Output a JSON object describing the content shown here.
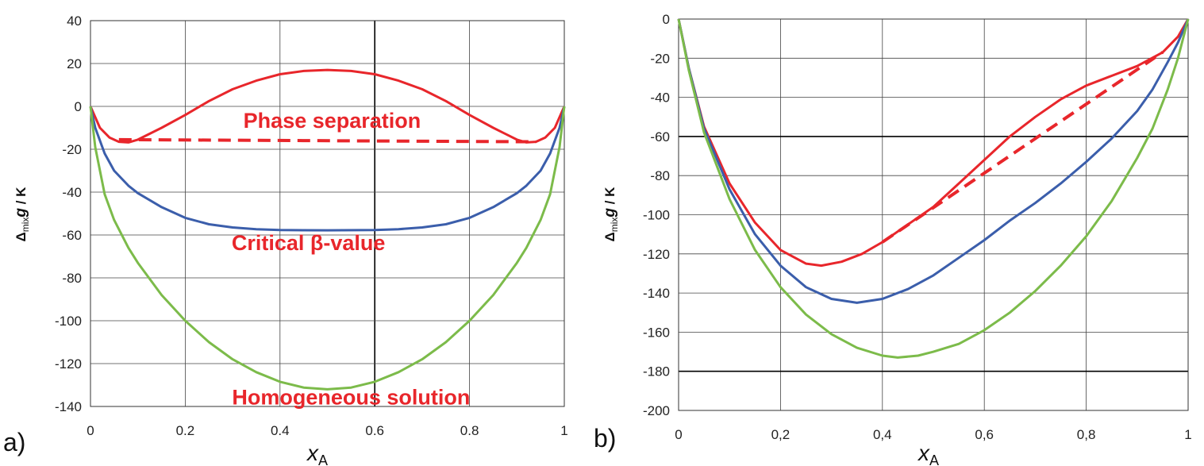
{
  "chart_data": [
    {
      "panel_label": "a)",
      "type": "line",
      "ylabel": {
        "main": "Δ",
        "sub": "mix",
        "var": "g",
        "unit": " / K"
      },
      "xlabel": {
        "main": "x",
        "sub": "A"
      },
      "xlim": [
        0,
        1
      ],
      "ylim": [
        -140,
        40
      ],
      "xticks": [
        0,
        0.2,
        0.4,
        0.6,
        0.8,
        1
      ],
      "xtick_labels": [
        "0",
        "0.2",
        "0.4",
        "0.6",
        "0.8",
        "1"
      ],
      "yticks": [
        40,
        20,
        0,
        -20,
        -40,
        -60,
        -80,
        -100,
        -120,
        -140
      ],
      "ytick_labels": [
        "40",
        "20",
        "0",
        "-20",
        "-40",
        "-60",
        "-80",
        "-100",
        "-120",
        "-140"
      ],
      "grid": true,
      "bold_gridlines_x": [
        0.6
      ],
      "bold_gridlines_y": [],
      "series": [
        {
          "name": "phase separation curve",
          "color": "#e8262b",
          "style": "solid",
          "points": [
            [
              0,
              0
            ],
            [
              0.02,
              -10
            ],
            [
              0.04,
              -14.5
            ],
            [
              0.06,
              -16.5
            ],
            [
              0.08,
              -16.8
            ],
            [
              0.1,
              -15.5
            ],
            [
              0.15,
              -10
            ],
            [
              0.2,
              -4
            ],
            [
              0.25,
              2.5
            ],
            [
              0.3,
              8
            ],
            [
              0.35,
              12
            ],
            [
              0.4,
              15
            ],
            [
              0.45,
              16.5
            ],
            [
              0.5,
              17
            ],
            [
              0.55,
              16.5
            ],
            [
              0.6,
              15
            ],
            [
              0.65,
              12
            ],
            [
              0.7,
              8
            ],
            [
              0.75,
              2.5
            ],
            [
              0.8,
              -4
            ],
            [
              0.85,
              -10
            ],
            [
              0.9,
              -15.5
            ],
            [
              0.92,
              -16.8
            ],
            [
              0.94,
              -16.5
            ],
            [
              0.96,
              -14.5
            ],
            [
              0.98,
              -10
            ],
            [
              1,
              0
            ]
          ]
        },
        {
          "name": "common tangent",
          "color": "#e8262b",
          "style": "dashed",
          "points": [
            [
              0.06,
              -15.5
            ],
            [
              0.94,
              -16.5
            ]
          ]
        },
        {
          "name": "critical beta curve",
          "color": "#3b5eab",
          "style": "solid",
          "points": [
            [
              0,
              0
            ],
            [
              0.01,
              -10
            ],
            [
              0.03,
              -22
            ],
            [
              0.05,
              -30
            ],
            [
              0.08,
              -37
            ],
            [
              0.1,
              -40.5
            ],
            [
              0.15,
              -47
            ],
            [
              0.2,
              -52
            ],
            [
              0.25,
              -55
            ],
            [
              0.3,
              -56.5
            ],
            [
              0.35,
              -57.3
            ],
            [
              0.4,
              -57.7
            ],
            [
              0.5,
              -57.8
            ],
            [
              0.6,
              -57.7
            ],
            [
              0.65,
              -57.3
            ],
            [
              0.7,
              -56.5
            ],
            [
              0.75,
              -55
            ],
            [
              0.8,
              -52
            ],
            [
              0.85,
              -47
            ],
            [
              0.9,
              -40.5
            ],
            [
              0.92,
              -37
            ],
            [
              0.95,
              -30
            ],
            [
              0.97,
              -22
            ],
            [
              0.99,
              -10
            ],
            [
              1,
              0
            ]
          ]
        },
        {
          "name": "homogeneous solution curve",
          "color": "#7cbb4a",
          "style": "solid",
          "points": [
            [
              0,
              0
            ],
            [
              0.01,
              -19
            ],
            [
              0.03,
              -41
            ],
            [
              0.05,
              -53
            ],
            [
              0.08,
              -66
            ],
            [
              0.1,
              -73
            ],
            [
              0.15,
              -88
            ],
            [
              0.2,
              -100
            ],
            [
              0.25,
              -110
            ],
            [
              0.3,
              -118
            ],
            [
              0.35,
              -124
            ],
            [
              0.4,
              -128.5
            ],
            [
              0.45,
              -131.2
            ],
            [
              0.5,
              -132
            ],
            [
              0.55,
              -131.2
            ],
            [
              0.6,
              -128.5
            ],
            [
              0.65,
              -124
            ],
            [
              0.7,
              -118
            ],
            [
              0.75,
              -110
            ],
            [
              0.8,
              -100
            ],
            [
              0.85,
              -88
            ],
            [
              0.9,
              -73
            ],
            [
              0.92,
              -66
            ],
            [
              0.95,
              -53
            ],
            [
              0.97,
              -41
            ],
            [
              0.99,
              -19
            ],
            [
              1,
              0
            ]
          ]
        }
      ],
      "annotations": [
        {
          "key": "phase",
          "text": "Phase separation",
          "at": [
            0.51,
            -10
          ]
        },
        {
          "key": "critical",
          "text": "Critical β-value",
          "at": [
            0.46,
            -67
          ]
        },
        {
          "key": "homog",
          "text": "Homogeneous solution",
          "at": [
            0.55,
            -139
          ]
        }
      ]
    },
    {
      "panel_label": "b)",
      "type": "line",
      "ylabel": {
        "main": "Δ",
        "sub": "mix",
        "var": "g",
        "unit": " / K"
      },
      "xlabel": {
        "main": "x",
        "sub": "A"
      },
      "xlim": [
        0,
        1
      ],
      "ylim": [
        -200,
        0
      ],
      "xticks": [
        0,
        0.2,
        0.4,
        0.6,
        0.8,
        1
      ],
      "xtick_labels": [
        "0",
        "0,2",
        "0,4",
        "0,6",
        "0,8",
        "1"
      ],
      "yticks": [
        0,
        -20,
        -40,
        -60,
        -80,
        -100,
        -120,
        -140,
        -160,
        -180,
        -200
      ],
      "ytick_labels": [
        "0",
        "-20",
        "-40",
        "-60",
        "-80",
        "-100",
        "-120",
        "-140",
        "-160",
        "-180",
        "-200"
      ],
      "grid": true,
      "bold_gridlines_x": [],
      "bold_gridlines_y": [
        -60,
        -180
      ],
      "series": [
        {
          "name": "phase separation curve",
          "color": "#e8262b",
          "style": "solid",
          "points": [
            [
              0,
              0
            ],
            [
              0.02,
              -25
            ],
            [
              0.05,
              -55
            ],
            [
              0.1,
              -84
            ],
            [
              0.15,
              -104
            ],
            [
              0.2,
              -118
            ],
            [
              0.25,
              -125
            ],
            [
              0.28,
              -126
            ],
            [
              0.32,
              -124
            ],
            [
              0.36,
              -120
            ],
            [
              0.4,
              -114
            ],
            [
              0.45,
              -105
            ],
            [
              0.5,
              -96
            ],
            [
              0.55,
              -84
            ],
            [
              0.6,
              -72
            ],
            [
              0.65,
              -60
            ],
            [
              0.7,
              -50
            ],
            [
              0.75,
              -41
            ],
            [
              0.8,
              -34
            ],
            [
              0.85,
              -29
            ],
            [
              0.9,
              -24
            ],
            [
              0.95,
              -17
            ],
            [
              0.98,
              -9
            ],
            [
              1,
              0
            ]
          ]
        },
        {
          "name": "common tangent",
          "color": "#e8262b",
          "style": "dashed",
          "points": [
            [
              0.4,
              -114
            ],
            [
              0.95,
              -17
            ]
          ]
        },
        {
          "name": "critical beta curve",
          "color": "#3b5eab",
          "style": "solid",
          "points": [
            [
              0,
              0
            ],
            [
              0.02,
              -25
            ],
            [
              0.05,
              -56
            ],
            [
              0.1,
              -87
            ],
            [
              0.15,
              -110
            ],
            [
              0.2,
              -126
            ],
            [
              0.25,
              -137
            ],
            [
              0.3,
              -143
            ],
            [
              0.35,
              -145
            ],
            [
              0.4,
              -143
            ],
            [
              0.45,
              -138
            ],
            [
              0.5,
              -131
            ],
            [
              0.55,
              -122
            ],
            [
              0.6,
              -113
            ],
            [
              0.65,
              -103
            ],
            [
              0.7,
              -94
            ],
            [
              0.75,
              -84
            ],
            [
              0.8,
              -73
            ],
            [
              0.85,
              -61
            ],
            [
              0.9,
              -47
            ],
            [
              0.93,
              -36
            ],
            [
              0.96,
              -22
            ],
            [
              0.98,
              -12
            ],
            [
              1,
              0
            ]
          ]
        },
        {
          "name": "homogeneous solution curve",
          "color": "#7cbb4a",
          "style": "solid",
          "points": [
            [
              0,
              0
            ],
            [
              0.02,
              -26
            ],
            [
              0.05,
              -58
            ],
            [
              0.1,
              -92
            ],
            [
              0.15,
              -118
            ],
            [
              0.2,
              -137
            ],
            [
              0.25,
              -151
            ],
            [
              0.3,
              -161
            ],
            [
              0.35,
              -168
            ],
            [
              0.4,
              -172
            ],
            [
              0.43,
              -173
            ],
            [
              0.47,
              -172
            ],
            [
              0.5,
              -170
            ],
            [
              0.55,
              -166
            ],
            [
              0.6,
              -159
            ],
            [
              0.65,
              -150
            ],
            [
              0.7,
              -139
            ],
            [
              0.75,
              -126
            ],
            [
              0.8,
              -111
            ],
            [
              0.85,
              -93
            ],
            [
              0.9,
              -71
            ],
            [
              0.93,
              -56
            ],
            [
              0.96,
              -36
            ],
            [
              0.98,
              -20
            ],
            [
              1,
              0
            ]
          ]
        }
      ],
      "annotations": []
    }
  ]
}
